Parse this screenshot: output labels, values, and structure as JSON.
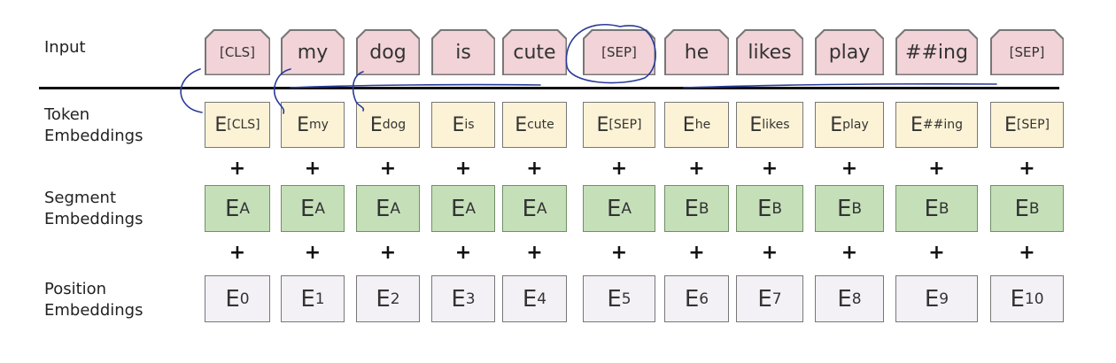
{
  "row_labels": {
    "input": "Input",
    "token": [
      "Token",
      "Embeddings"
    ],
    "segment": [
      "Segment",
      "Embeddings"
    ],
    "position": [
      "Position",
      "Embeddings"
    ]
  },
  "tokens": [
    {
      "input": "[CLS]",
      "token_sub": "[CLS]",
      "segment_sub": "A",
      "position_sub": "0"
    },
    {
      "input": "my",
      "token_sub": "my",
      "segment_sub": "A",
      "position_sub": "1"
    },
    {
      "input": "dog",
      "token_sub": "dog",
      "segment_sub": "A",
      "position_sub": "2"
    },
    {
      "input": "is",
      "token_sub": "is",
      "segment_sub": "A",
      "position_sub": "3"
    },
    {
      "input": "cute",
      "token_sub": "cute",
      "segment_sub": "A",
      "position_sub": "4"
    },
    {
      "input": "[SEP]",
      "token_sub": "[SEP]",
      "segment_sub": "A",
      "position_sub": "5"
    },
    {
      "input": "he",
      "token_sub": "he",
      "segment_sub": "B",
      "position_sub": "6"
    },
    {
      "input": "likes",
      "token_sub": "likes",
      "segment_sub": "B",
      "position_sub": "7"
    },
    {
      "input": "play",
      "token_sub": "play",
      "segment_sub": "B",
      "position_sub": "8"
    },
    {
      "input": "##ing",
      "token_sub": "##ing",
      "segment_sub": "B",
      "position_sub": "9"
    },
    {
      "input": "[SEP]",
      "token_sub": "[SEP]",
      "segment_sub": "B",
      "position_sub": "10"
    }
  ],
  "embedding_letter": "E",
  "plus_symbol": "+",
  "colors": {
    "input": "#f1d3d8",
    "token": "#fcf3d6",
    "segment": "#c5e0b9",
    "position": "#f3f1f6",
    "annotation_ink": "#2a3a9a"
  }
}
